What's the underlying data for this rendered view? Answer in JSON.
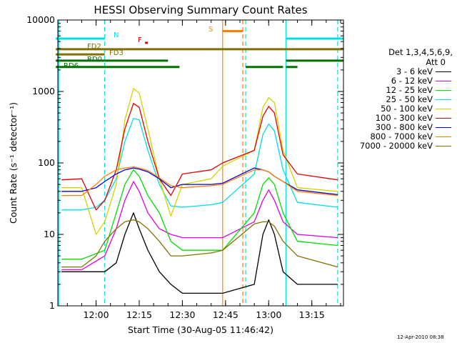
{
  "chart_data": {
    "type": "line",
    "title": "HESSI Observing Summary Count Rates",
    "xlabel": "Start Time (30-Aug-05 11:46:42)",
    "ylabel": "Count Rate (s⁻¹ detector⁻¹)",
    "y_scale": "log",
    "ylim": [
      1,
      10000
    ],
    "xlim": [
      "11:46:42",
      "13:26:00"
    ],
    "x_ticks": [
      "12:00",
      "12:15",
      "12:30",
      "12:45",
      "13:00",
      "13:15"
    ],
    "y_ticks": [
      "1",
      "10",
      "100",
      "1000",
      "10000"
    ],
    "legend": {
      "header_lines": [
        "Det 1,3,4,5,6,9,",
        "Att 0"
      ],
      "position": "right"
    },
    "series": [
      {
        "name": "3 - 6 keV",
        "color": "#000000",
        "points": [
          [
            "11:48",
            3
          ],
          [
            "11:55",
            3
          ],
          [
            "12:03",
            3
          ],
          [
            "12:07",
            4
          ],
          [
            "12:10",
            10
          ],
          [
            "12:13",
            20
          ],
          [
            "12:15",
            12
          ],
          [
            "12:18",
            6
          ],
          [
            "12:22",
            3
          ],
          [
            "12:26",
            2
          ],
          [
            "12:30",
            1.5
          ],
          [
            "12:40",
            1.5
          ],
          [
            "12:44",
            1.5
          ],
          [
            "12:55",
            2
          ],
          [
            "12:58",
            10
          ],
          [
            "13:00",
            16
          ],
          [
            "13:02",
            10
          ],
          [
            "13:05",
            3
          ],
          [
            "13:10",
            2
          ],
          [
            "13:24",
            2
          ]
        ]
      },
      {
        "name": "6 - 12 keV",
        "color": "#e000e0",
        "points": [
          [
            "11:48",
            3.2
          ],
          [
            "11:55",
            3.2
          ],
          [
            "12:03",
            5
          ],
          [
            "12:07",
            12
          ],
          [
            "12:10",
            30
          ],
          [
            "12:13",
            55
          ],
          [
            "12:15",
            40
          ],
          [
            "12:18",
            20
          ],
          [
            "12:22",
            12
          ],
          [
            "12:26",
            10
          ],
          [
            "12:30",
            9
          ],
          [
            "12:40",
            9
          ],
          [
            "12:44",
            9
          ],
          [
            "12:55",
            15
          ],
          [
            "12:58",
            30
          ],
          [
            "13:00",
            42
          ],
          [
            "13:02",
            30
          ],
          [
            "13:05",
            15
          ],
          [
            "13:10",
            10
          ],
          [
            "13:24",
            9
          ]
        ]
      },
      {
        "name": "12 - 25 keV",
        "color": "#00e000",
        "points": [
          [
            "11:48",
            4.5
          ],
          [
            "11:55",
            4.5
          ],
          [
            "12:03",
            6
          ],
          [
            "12:07",
            20
          ],
          [
            "12:10",
            50
          ],
          [
            "12:13",
            80
          ],
          [
            "12:15",
            65
          ],
          [
            "12:18",
            35
          ],
          [
            "12:22",
            20
          ],
          [
            "12:26",
            8
          ],
          [
            "12:30",
            6
          ],
          [
            "12:40",
            6
          ],
          [
            "12:44",
            6
          ],
          [
            "12:55",
            20
          ],
          [
            "12:58",
            50
          ],
          [
            "13:00",
            62
          ],
          [
            "13:02",
            50
          ],
          [
            "13:05",
            20
          ],
          [
            "13:10",
            8
          ],
          [
            "13:24",
            7
          ]
        ]
      },
      {
        "name": "25 - 50 keV",
        "color": "#00e0e0",
        "points": [
          [
            "11:48",
            22
          ],
          [
            "11:55",
            22
          ],
          [
            "12:00",
            24
          ],
          [
            "12:03",
            30
          ],
          [
            "12:07",
            60
          ],
          [
            "12:10",
            200
          ],
          [
            "12:13",
            420
          ],
          [
            "12:15",
            400
          ],
          [
            "12:18",
            150
          ],
          [
            "12:22",
            50
          ],
          [
            "12:26",
            25
          ],
          [
            "12:30",
            24
          ],
          [
            "12:40",
            26
          ],
          [
            "12:44",
            28
          ],
          [
            "12:55",
            70
          ],
          [
            "12:58",
            250
          ],
          [
            "13:00",
            350
          ],
          [
            "13:02",
            280
          ],
          [
            "13:05",
            80
          ],
          [
            "13:10",
            28
          ],
          [
            "13:24",
            24
          ]
        ]
      },
      {
        "name": "50 - 100 keV",
        "color": "#d4d400",
        "points": [
          [
            "11:48",
            45
          ],
          [
            "11:55",
            45
          ],
          [
            "12:00",
            10
          ],
          [
            "12:03",
            15
          ],
          [
            "12:07",
            50
          ],
          [
            "12:10",
            400
          ],
          [
            "12:13",
            1100
          ],
          [
            "12:15",
            950
          ],
          [
            "12:18",
            300
          ],
          [
            "12:22",
            60
          ],
          [
            "12:26",
            18
          ],
          [
            "12:30",
            50
          ],
          [
            "12:40",
            60
          ],
          [
            "12:44",
            90
          ],
          [
            "12:55",
            150
          ],
          [
            "12:58",
            600
          ],
          [
            "13:00",
            820
          ],
          [
            "13:02",
            700
          ],
          [
            "13:05",
            150
          ],
          [
            "13:10",
            45
          ],
          [
            "13:24",
            40
          ]
        ]
      },
      {
        "name": "100 - 300 keV",
        "color": "#e00000",
        "points": [
          [
            "11:48",
            58
          ],
          [
            "11:55",
            60
          ],
          [
            "12:00",
            22
          ],
          [
            "12:03",
            30
          ],
          [
            "12:07",
            80
          ],
          [
            "12:10",
            300
          ],
          [
            "12:13",
            680
          ],
          [
            "12:15",
            600
          ],
          [
            "12:18",
            200
          ],
          [
            "12:22",
            60
          ],
          [
            "12:26",
            35
          ],
          [
            "12:30",
            70
          ],
          [
            "12:40",
            80
          ],
          [
            "12:44",
            100
          ],
          [
            "12:55",
            150
          ],
          [
            "12:58",
            450
          ],
          [
            "13:00",
            620
          ],
          [
            "13:02",
            500
          ],
          [
            "13:05",
            130
          ],
          [
            "13:10",
            70
          ],
          [
            "13:24",
            58
          ]
        ]
      },
      {
        "name": "300 - 800 keV",
        "color": "#0000e0",
        "points": [
          [
            "11:48",
            40
          ],
          [
            "11:55",
            40
          ],
          [
            "12:00",
            45
          ],
          [
            "12:03",
            55
          ],
          [
            "12:07",
            70
          ],
          [
            "12:10",
            80
          ],
          [
            "12:13",
            85
          ],
          [
            "12:15",
            82
          ],
          [
            "12:18",
            75
          ],
          [
            "12:22",
            60
          ],
          [
            "12:26",
            45
          ],
          [
            "12:30",
            50
          ],
          [
            "12:40",
            50
          ],
          [
            "12:44",
            52
          ],
          [
            "12:55",
            85
          ],
          [
            "12:58",
            80
          ],
          [
            "13:00",
            75
          ],
          [
            "13:02",
            65
          ],
          [
            "13:05",
            55
          ],
          [
            "13:10",
            42
          ],
          [
            "13:24",
            36
          ]
        ]
      },
      {
        "name": "800 - 7000 keV",
        "color": "#ff8000",
        "points": [
          [
            "11:48",
            35
          ],
          [
            "11:55",
            35
          ],
          [
            "12:00",
            50
          ],
          [
            "12:03",
            65
          ],
          [
            "12:07",
            80
          ],
          [
            "12:10",
            85
          ],
          [
            "12:13",
            88
          ],
          [
            "12:15",
            85
          ],
          [
            "12:18",
            78
          ],
          [
            "12:22",
            62
          ],
          [
            "12:26",
            48
          ],
          [
            "12:30",
            45
          ],
          [
            "12:40",
            48
          ],
          [
            "12:44",
            50
          ],
          [
            "12:55",
            80
          ],
          [
            "12:58",
            80
          ],
          [
            "13:00",
            75
          ],
          [
            "13:02",
            65
          ],
          [
            "13:05",
            55
          ],
          [
            "13:10",
            40
          ],
          [
            "13:24",
            35
          ]
        ]
      },
      {
        "name": "7000 - 20000 keV",
        "color": "#807000",
        "points": [
          [
            "11:48",
            3.5
          ],
          [
            "11:55",
            3.5
          ],
          [
            "12:00",
            5
          ],
          [
            "12:03",
            8
          ],
          [
            "12:07",
            12
          ],
          [
            "12:10",
            15
          ],
          [
            "12:13",
            16
          ],
          [
            "12:15",
            15
          ],
          [
            "12:18",
            12
          ],
          [
            "12:22",
            8
          ],
          [
            "12:26",
            5
          ],
          [
            "12:30",
            5
          ],
          [
            "12:40",
            5.5
          ],
          [
            "12:44",
            6
          ],
          [
            "12:55",
            14
          ],
          [
            "12:58",
            15
          ],
          [
            "13:00",
            15
          ],
          [
            "13:02",
            13
          ],
          [
            "13:05",
            8
          ],
          [
            "13:10",
            5
          ],
          [
            "13:24",
            3.5
          ]
        ]
      }
    ],
    "markers": [
      {
        "label": "N",
        "color": "#00e0e0",
        "segments": [
          [
            "11:46",
            5500,
            "12:03"
          ],
          [
            "13:06",
            5500,
            "13:26"
          ]
        ]
      },
      {
        "label": "F",
        "color": "#e00000",
        "segments": [
          [
            "12:17",
            4800,
            "12:18"
          ]
        ]
      },
      {
        "label": "S",
        "color": "#ff8000",
        "segments": [
          [
            "12:44",
            7000,
            "12:51"
          ]
        ]
      },
      {
        "label": "FD2",
        "color": "#807000",
        "segments": [
          [
            "11:46",
            3900,
            "12:03"
          ],
          [
            "12:03",
            3900,
            "13:26"
          ]
        ]
      },
      {
        "label": "FD3",
        "color": "#807000",
        "segments": [
          [
            "11:46",
            3300,
            "12:03"
          ]
        ]
      },
      {
        "label": "RD0",
        "color": "#007000",
        "segments": [
          [
            "11:46",
            2700,
            "12:03"
          ],
          [
            "12:03",
            2700,
            "12:25"
          ],
          [
            "13:06",
            2700,
            "13:26"
          ]
        ]
      },
      {
        "label": "RD6",
        "color": "#007000",
        "segments": [
          [
            "11:46",
            2200,
            "11:55"
          ],
          [
            "11:55",
            2200,
            "12:29"
          ],
          [
            "12:52",
            2200,
            "13:05"
          ],
          [
            "13:06",
            2200,
            "13:10"
          ]
        ]
      }
    ],
    "vlines": [
      {
        "time": "11:47",
        "color": "#00e0e0",
        "style": "solid"
      },
      {
        "time": "12:03",
        "color": "#00e0e0",
        "style": "dashed"
      },
      {
        "time": "12:44",
        "color": "#ff8000",
        "style": "solid"
      },
      {
        "time": "12:51",
        "color": "#ff8000",
        "style": "dashed"
      },
      {
        "time": "12:52",
        "color": "#00e0e0",
        "style": "dashed"
      },
      {
        "time": "13:06",
        "color": "#00e0e0",
        "style": "solid"
      },
      {
        "time": "13:24",
        "color": "#00e0e0",
        "style": "dashed"
      }
    ]
  },
  "footer": {
    "timestamp": "12-Apr-2010 08:38"
  }
}
